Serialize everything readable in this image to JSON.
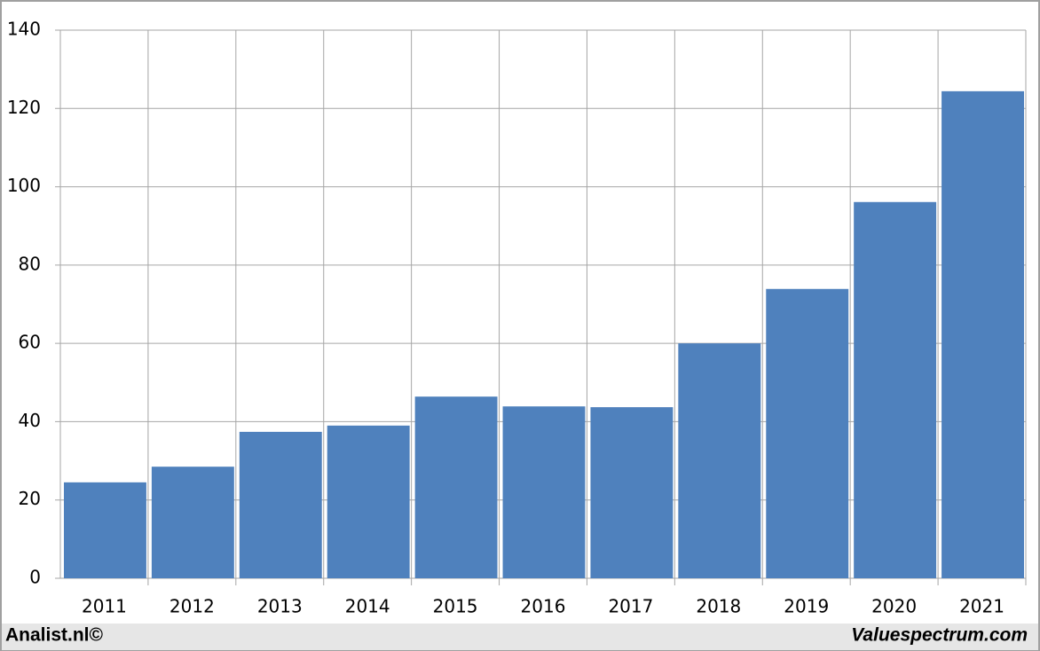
{
  "chart_data": {
    "type": "bar",
    "categories": [
      "2011",
      "2012",
      "2013",
      "2014",
      "2015",
      "2016",
      "2017",
      "2018",
      "2019",
      "2020",
      "2021"
    ],
    "values": [
      24.5,
      28.5,
      37.4,
      39.0,
      46.4,
      43.9,
      43.7,
      60.0,
      73.9,
      96.1,
      124.4
    ],
    "color": "#4f81bd",
    "ylim": [
      0,
      140
    ],
    "yticks": [
      0,
      20,
      40,
      60,
      80,
      100,
      120,
      140
    ],
    "grid": true,
    "footer_left": "Analist.nl©",
    "footer_right": "Valuespectrum.com"
  }
}
